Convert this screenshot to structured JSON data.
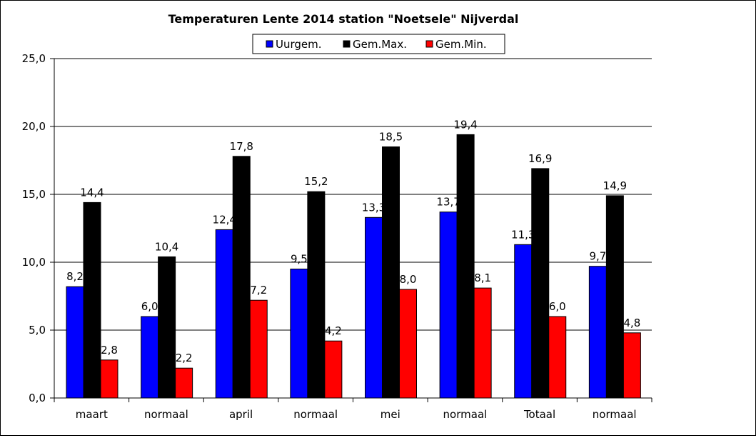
{
  "chart_data": {
    "type": "bar",
    "title": "Temperaturen Lente 2014 station \"Noetsele\" Nijverdal",
    "xlabel": "",
    "ylabel": "",
    "ylim": [
      0,
      25
    ],
    "yticks": [
      0,
      5,
      10,
      15,
      20,
      25
    ],
    "ytick_labels": [
      "0,0",
      "5,0",
      "10,0",
      "15,0",
      "20,0",
      "25,0"
    ],
    "grid": true,
    "legend_position": "top-center",
    "categories": [
      "maart",
      "normaal",
      "april",
      "normaal",
      "mei",
      "normaal",
      "Totaal",
      "normaal"
    ],
    "series": [
      {
        "name": "Uurgem.",
        "color": "#0000ff",
        "values": [
          8.2,
          6.0,
          12.4,
          9.5,
          13.3,
          13.7,
          11.3,
          9.7
        ],
        "labels": [
          "8,2",
          "6,0",
          "12,4",
          "9,5",
          "13,3",
          "13,7",
          "11,3",
          "9,7"
        ]
      },
      {
        "name": "Gem.Max.",
        "color": "#000000",
        "values": [
          14.4,
          10.4,
          17.8,
          15.2,
          18.5,
          19.4,
          16.9,
          14.9
        ],
        "labels": [
          "14,4",
          "10,4",
          "17,8",
          "15,2",
          "18,5",
          "19,4",
          "16,9",
          "14,9"
        ]
      },
      {
        "name": "Gem.Min.",
        "color": "#ff0000",
        "values": [
          2.8,
          2.2,
          7.2,
          4.2,
          8.0,
          8.1,
          6.0,
          4.8
        ],
        "labels": [
          "2,8",
          "2,2",
          "7,2",
          "4,2",
          "8,0",
          "8,1",
          "6,0",
          "4,8"
        ]
      }
    ]
  }
}
